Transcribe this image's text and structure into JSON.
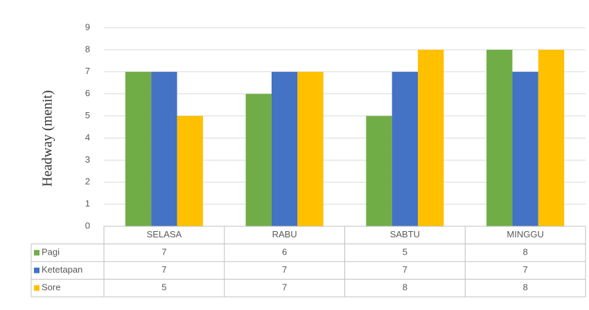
{
  "chart_data": {
    "type": "bar",
    "y_label": "Headway (menit)",
    "categories": [
      "SELASA",
      "RABU",
      "SABTU",
      "MINGGU"
    ],
    "series": [
      {
        "name": "Pagi",
        "color": "#70ad47",
        "values": [
          7,
          6,
          5,
          8
        ]
      },
      {
        "name": "Ketetapan",
        "color": "#4472c4",
        "values": [
          7,
          7,
          7,
          7
        ]
      },
      {
        "name": "Sore",
        "color": "#ffc000",
        "values": [
          5,
          7,
          8,
          8
        ]
      }
    ],
    "ylim": [
      0,
      9
    ],
    "yticks": [
      0,
      1,
      2,
      3,
      4,
      5,
      6,
      7,
      8,
      9
    ],
    "grid": true,
    "data_table": true
  }
}
